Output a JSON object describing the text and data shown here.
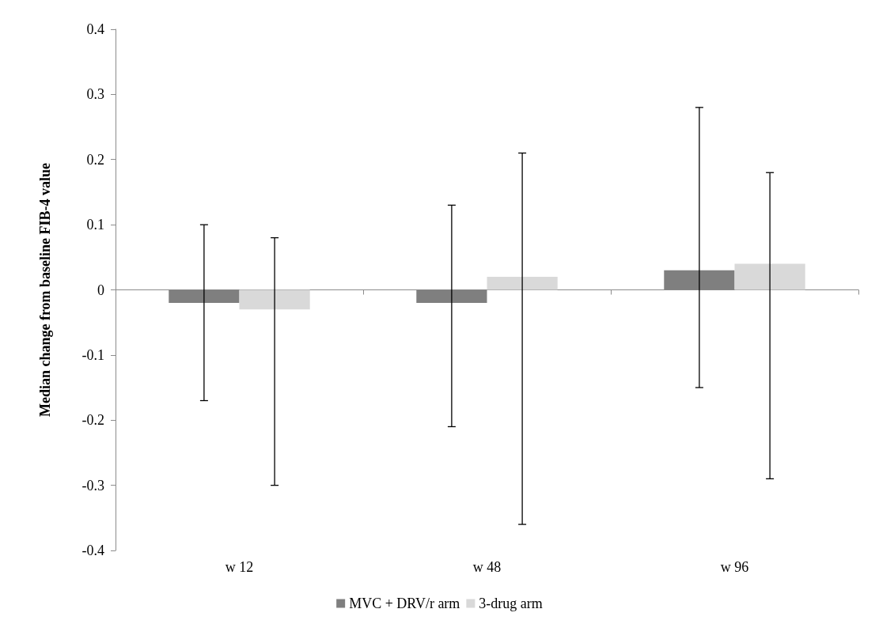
{
  "chart_data": {
    "type": "bar",
    "ylabel": "Median change from baseline FIB-4 value",
    "categories": [
      "w 12",
      "w 48",
      "w 96"
    ],
    "series": [
      {
        "name": "MVC + DRV/r arm",
        "color": "#7f7f7f",
        "values": [
          -0.02,
          -0.02,
          0.03
        ],
        "errors": [
          [
            -0.17,
            0.1
          ],
          [
            -0.21,
            0.13
          ],
          [
            -0.15,
            0.28
          ]
        ]
      },
      {
        "name": "3-drug arm",
        "color": "#d9d9d9",
        "values": [
          -0.03,
          0.02,
          0.04
        ],
        "errors": [
          [
            -0.3,
            0.08
          ],
          [
            -0.36,
            0.21
          ],
          [
            -0.29,
            0.18
          ]
        ]
      }
    ],
    "ylim": [
      -0.4,
      0.4
    ],
    "yticks": [
      -0.4,
      -0.3,
      -0.2,
      -0.1,
      0,
      0.1,
      0.2,
      0.3,
      0.4
    ],
    "legend": "bottom"
  }
}
